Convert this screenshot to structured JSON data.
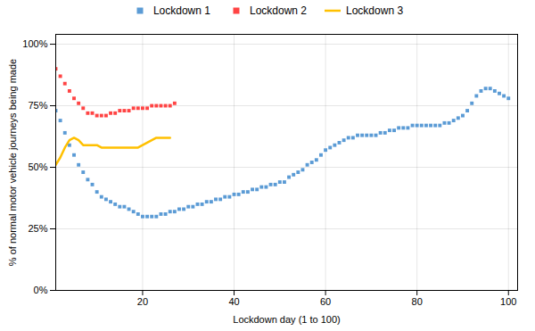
{
  "chart_data": {
    "type": "line",
    "xlabel": "Lockdown day (1 to 100)",
    "ylabel": "% of normal motor vehicle journeys being made",
    "xlim": [
      1,
      102
    ],
    "ylim": [
      0,
      1.04
    ],
    "xticks": [
      20,
      40,
      60,
      80,
      100
    ],
    "yticks": [
      {
        "value": 0.0,
        "label": "0%"
      },
      {
        "value": 0.25,
        "label": "25%"
      },
      {
        "value": 0.5,
        "label": "50%"
      },
      {
        "value": 0.75,
        "label": "75%"
      },
      {
        "value": 1.0,
        "label": "100%"
      }
    ],
    "grid": true,
    "legend": "top",
    "series": [
      {
        "name": "Lockdown 1",
        "color": "#5b9bd5",
        "marker": "square",
        "line_style": "none",
        "x": [
          1,
          2,
          3,
          4,
          5,
          6,
          7,
          8,
          9,
          10,
          11,
          12,
          13,
          14,
          15,
          16,
          17,
          18,
          19,
          20,
          21,
          22,
          23,
          24,
          25,
          26,
          27,
          28,
          29,
          30,
          31,
          32,
          33,
          34,
          35,
          36,
          37,
          38,
          39,
          40,
          41,
          42,
          43,
          44,
          45,
          46,
          47,
          48,
          49,
          50,
          51,
          52,
          53,
          54,
          55,
          56,
          57,
          58,
          59,
          60,
          61,
          62,
          63,
          64,
          65,
          66,
          67,
          68,
          69,
          70,
          71,
          72,
          73,
          74,
          75,
          76,
          77,
          78,
          79,
          80,
          81,
          82,
          83,
          84,
          85,
          86,
          87,
          88,
          89,
          90,
          91,
          92,
          93,
          94,
          95,
          96,
          97,
          98,
          99,
          100
        ],
        "values": [
          0.73,
          0.69,
          0.64,
          0.59,
          0.55,
          0.51,
          0.48,
          0.45,
          0.43,
          0.4,
          0.38,
          0.37,
          0.36,
          0.35,
          0.34,
          0.34,
          0.33,
          0.32,
          0.31,
          0.3,
          0.3,
          0.3,
          0.3,
          0.31,
          0.31,
          0.32,
          0.32,
          0.33,
          0.33,
          0.34,
          0.34,
          0.35,
          0.35,
          0.36,
          0.36,
          0.37,
          0.37,
          0.38,
          0.38,
          0.39,
          0.39,
          0.4,
          0.4,
          0.41,
          0.41,
          0.42,
          0.42,
          0.43,
          0.43,
          0.44,
          0.44,
          0.46,
          0.47,
          0.48,
          0.49,
          0.51,
          0.52,
          0.53,
          0.55,
          0.57,
          0.58,
          0.59,
          0.6,
          0.61,
          0.62,
          0.62,
          0.63,
          0.63,
          0.63,
          0.63,
          0.63,
          0.64,
          0.64,
          0.65,
          0.65,
          0.66,
          0.66,
          0.66,
          0.67,
          0.67,
          0.67,
          0.67,
          0.67,
          0.67,
          0.67,
          0.68,
          0.68,
          0.69,
          0.7,
          0.71,
          0.73,
          0.76,
          0.79,
          0.81,
          0.82,
          0.82,
          0.81,
          0.8,
          0.79,
          0.78
        ]
      },
      {
        "name": "Lockdown 2",
        "color": "#ff4444",
        "marker": "square",
        "line_style": "none",
        "x": [
          1,
          2,
          3,
          4,
          5,
          6,
          7,
          8,
          9,
          10,
          11,
          12,
          13,
          14,
          15,
          16,
          17,
          18,
          19,
          20,
          21,
          22,
          23,
          24,
          25,
          26,
          27
        ],
        "values": [
          0.9,
          0.87,
          0.84,
          0.81,
          0.78,
          0.76,
          0.74,
          0.72,
          0.72,
          0.71,
          0.71,
          0.71,
          0.72,
          0.72,
          0.73,
          0.73,
          0.73,
          0.74,
          0.74,
          0.74,
          0.74,
          0.75,
          0.75,
          0.75,
          0.75,
          0.75,
          0.76
        ]
      },
      {
        "name": "Lockdown 3",
        "color": "#ffc000",
        "marker": "none",
        "line_style": "solid",
        "x": [
          1,
          2,
          3,
          4,
          5,
          6,
          7,
          8,
          9,
          10,
          11,
          12,
          13,
          14,
          15,
          16,
          17,
          18,
          19,
          20,
          21,
          22,
          23,
          24,
          25,
          26
        ],
        "values": [
          0.51,
          0.54,
          0.58,
          0.61,
          0.62,
          0.61,
          0.59,
          0.59,
          0.59,
          0.59,
          0.58,
          0.58,
          0.58,
          0.58,
          0.58,
          0.58,
          0.58,
          0.58,
          0.58,
          0.59,
          0.6,
          0.61,
          0.62,
          0.62,
          0.62,
          0.62
        ]
      }
    ]
  }
}
